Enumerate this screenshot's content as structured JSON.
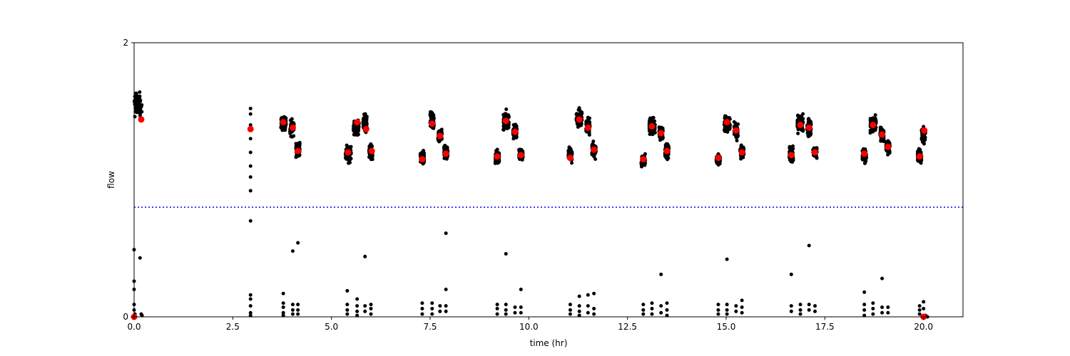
{
  "chart_data": {
    "type": "scatter",
    "xlabel": "time (hr)",
    "ylabel": "flow",
    "xlim": [
      0,
      21
    ],
    "ylim": [
      0,
      2
    ],
    "x_ticks": [
      0.0,
      2.5,
      5.0,
      7.5,
      10.0,
      12.5,
      15.0,
      17.5,
      20.0
    ],
    "x_tick_labels": [
      "0.0",
      "2.5",
      "5.0",
      "7.5",
      "10.0",
      "12.5",
      "15.0",
      "17.5",
      "20.0"
    ],
    "y_ticks": [
      0,
      2
    ],
    "y_tick_labels": [
      "0",
      "2"
    ],
    "grid": false,
    "threshold_line": {
      "y": 0.8,
      "color": "#0000ff",
      "style": "dotted"
    },
    "series": [
      {
        "color": "#000000",
        "marker": "dot",
        "clusters": [
          {
            "x_start": 0.0,
            "x_end": 0.2,
            "center": 1.55,
            "spread": 0.12
          },
          {
            "x_start": 3.72,
            "x_end": 3.85,
            "center": 1.41,
            "spread": 0.07
          },
          {
            "x_start": 3.95,
            "x_end": 4.05,
            "center": 1.38,
            "spread": 0.08
          },
          {
            "x_start": 4.1,
            "x_end": 4.2,
            "center": 1.22,
            "spread": 0.08
          },
          {
            "x_start": 5.35,
            "x_end": 5.5,
            "center": 1.19,
            "spread": 0.08
          },
          {
            "x_start": 5.55,
            "x_end": 5.7,
            "center": 1.38,
            "spread": 0.07
          },
          {
            "x_start": 5.8,
            "x_end": 5.9,
            "center": 1.41,
            "spread": 0.09
          },
          {
            "x_start": 5.95,
            "x_end": 6.05,
            "center": 1.2,
            "spread": 0.07
          },
          {
            "x_start": 7.25,
            "x_end": 7.35,
            "center": 1.16,
            "spread": 0.07
          },
          {
            "x_start": 7.5,
            "x_end": 7.6,
            "center": 1.42,
            "spread": 0.1
          },
          {
            "x_start": 7.7,
            "x_end": 7.8,
            "center": 1.32,
            "spread": 0.07
          },
          {
            "x_start": 7.85,
            "x_end": 7.95,
            "center": 1.2,
            "spread": 0.07
          },
          {
            "x_start": 9.15,
            "x_end": 9.25,
            "center": 1.16,
            "spread": 0.07
          },
          {
            "x_start": 9.35,
            "x_end": 9.5,
            "center": 1.43,
            "spread": 0.1
          },
          {
            "x_start": 9.6,
            "x_end": 9.7,
            "center": 1.35,
            "spread": 0.07
          },
          {
            "x_start": 9.75,
            "x_end": 9.85,
            "center": 1.19,
            "spread": 0.07
          },
          {
            "x_start": 11.0,
            "x_end": 11.1,
            "center": 1.18,
            "spread": 0.08
          },
          {
            "x_start": 11.2,
            "x_end": 11.35,
            "center": 1.45,
            "spread": 0.1
          },
          {
            "x_start": 11.45,
            "x_end": 11.55,
            "center": 1.39,
            "spread": 0.08
          },
          {
            "x_start": 11.6,
            "x_end": 11.7,
            "center": 1.22,
            "spread": 0.08
          },
          {
            "x_start": 12.85,
            "x_end": 12.95,
            "center": 1.14,
            "spread": 0.06
          },
          {
            "x_start": 13.05,
            "x_end": 13.2,
            "center": 1.39,
            "spread": 0.08
          },
          {
            "x_start": 13.3,
            "x_end": 13.4,
            "center": 1.34,
            "spread": 0.07
          },
          {
            "x_start": 13.45,
            "x_end": 13.55,
            "center": 1.21,
            "spread": 0.07
          },
          {
            "x_start": 14.75,
            "x_end": 14.85,
            "center": 1.15,
            "spread": 0.06
          },
          {
            "x_start": 14.95,
            "x_end": 15.1,
            "center": 1.41,
            "spread": 0.08
          },
          {
            "x_start": 15.2,
            "x_end": 15.3,
            "center": 1.35,
            "spread": 0.09
          },
          {
            "x_start": 15.35,
            "x_end": 15.45,
            "center": 1.2,
            "spread": 0.06
          },
          {
            "x_start": 16.6,
            "x_end": 16.7,
            "center": 1.18,
            "spread": 0.08
          },
          {
            "x_start": 16.8,
            "x_end": 16.95,
            "center": 1.41,
            "spread": 0.09
          },
          {
            "x_start": 17.05,
            "x_end": 17.15,
            "center": 1.38,
            "spread": 0.09
          },
          {
            "x_start": 17.2,
            "x_end": 17.3,
            "center": 1.2,
            "spread": 0.06
          },
          {
            "x_start": 18.45,
            "x_end": 18.55,
            "center": 1.18,
            "spread": 0.07
          },
          {
            "x_start": 18.65,
            "x_end": 18.8,
            "center": 1.4,
            "spread": 0.09
          },
          {
            "x_start": 18.9,
            "x_end": 19.0,
            "center": 1.33,
            "spread": 0.08
          },
          {
            "x_start": 19.05,
            "x_end": 19.15,
            "center": 1.24,
            "spread": 0.07
          },
          {
            "x_start": 19.85,
            "x_end": 19.95,
            "center": 1.17,
            "spread": 0.07
          },
          {
            "x_start": 19.95,
            "x_end": 20.05,
            "center": 1.32,
            "spread": 0.08
          }
        ],
        "points": [
          [
            2.95,
            1.52
          ],
          [
            2.95,
            1.48
          ],
          [
            2.95,
            1.4
          ],
          [
            2.95,
            1.3
          ],
          [
            2.95,
            1.2
          ],
          [
            2.95,
            1.1
          ],
          [
            2.95,
            1.02
          ],
          [
            2.95,
            0.92
          ],
          [
            2.95,
            0.7
          ],
          [
            2.95,
            0.16
          ],
          [
            2.95,
            0.13
          ],
          [
            2.95,
            0.08
          ],
          [
            2.95,
            0.03
          ],
          [
            2.95,
            0.01
          ],
          [
            0.0,
            0.49
          ],
          [
            0.0,
            0.26
          ],
          [
            0.0,
            0.2
          ],
          [
            0.0,
            0.09
          ],
          [
            0.0,
            0.05
          ],
          [
            0.02,
            0.02
          ],
          [
            0.15,
            0.43
          ],
          [
            0.18,
            0.02
          ],
          [
            0.2,
            0.01
          ],
          [
            3.78,
            0.17
          ],
          [
            3.78,
            0.1
          ],
          [
            3.78,
            0.07
          ],
          [
            3.78,
            0.03
          ],
          [
            3.78,
            0.01
          ],
          [
            4.02,
            0.48
          ],
          [
            4.02,
            0.09
          ],
          [
            4.02,
            0.05
          ],
          [
            4.02,
            0.02
          ],
          [
            4.15,
            0.54
          ],
          [
            4.15,
            0.09
          ],
          [
            4.15,
            0.05
          ],
          [
            4.15,
            0.02
          ],
          [
            5.4,
            0.19
          ],
          [
            5.4,
            0.09
          ],
          [
            5.4,
            0.05
          ],
          [
            5.4,
            0.02
          ],
          [
            5.65,
            0.13
          ],
          [
            5.65,
            0.08
          ],
          [
            5.65,
            0.04
          ],
          [
            5.65,
            0.01
          ],
          [
            5.85,
            0.44
          ],
          [
            5.85,
            0.08
          ],
          [
            5.85,
            0.04
          ],
          [
            6.0,
            0.09
          ],
          [
            6.0,
            0.06
          ],
          [
            6.0,
            0.02
          ],
          [
            7.3,
            0.1
          ],
          [
            7.3,
            0.06
          ],
          [
            7.3,
            0.02
          ],
          [
            7.55,
            0.1
          ],
          [
            7.55,
            0.06
          ],
          [
            7.55,
            0.02
          ],
          [
            7.75,
            0.08
          ],
          [
            7.75,
            0.04
          ],
          [
            7.9,
            0.61
          ],
          [
            7.9,
            0.2
          ],
          [
            7.9,
            0.08
          ],
          [
            7.9,
            0.04
          ],
          [
            9.2,
            0.09
          ],
          [
            9.2,
            0.06
          ],
          [
            9.2,
            0.02
          ],
          [
            9.42,
            0.46
          ],
          [
            9.42,
            0.09
          ],
          [
            9.42,
            0.05
          ],
          [
            9.42,
            0.02
          ],
          [
            9.65,
            0.07
          ],
          [
            9.65,
            0.03
          ],
          [
            9.8,
            0.2
          ],
          [
            9.8,
            0.07
          ],
          [
            9.8,
            0.03
          ],
          [
            11.05,
            0.09
          ],
          [
            11.05,
            0.05
          ],
          [
            11.05,
            0.02
          ],
          [
            11.28,
            0.15
          ],
          [
            11.28,
            0.08
          ],
          [
            11.28,
            0.04
          ],
          [
            11.28,
            0.01
          ],
          [
            11.5,
            0.16
          ],
          [
            11.5,
            0.08
          ],
          [
            11.5,
            0.03
          ],
          [
            11.65,
            0.17
          ],
          [
            11.65,
            0.06
          ],
          [
            11.65,
            0.02
          ],
          [
            12.9,
            0.09
          ],
          [
            12.9,
            0.05
          ],
          [
            12.9,
            0.02
          ],
          [
            13.12,
            0.1
          ],
          [
            13.12,
            0.06
          ],
          [
            13.12,
            0.02
          ],
          [
            13.35,
            0.31
          ],
          [
            13.35,
            0.08
          ],
          [
            13.35,
            0.03
          ],
          [
            13.5,
            0.1
          ],
          [
            13.5,
            0.05
          ],
          [
            13.5,
            0.01
          ],
          [
            14.8,
            0.09
          ],
          [
            14.8,
            0.05
          ],
          [
            14.8,
            0.02
          ],
          [
            15.02,
            0.42
          ],
          [
            15.02,
            0.09
          ],
          [
            15.02,
            0.05
          ],
          [
            15.02,
            0.02
          ],
          [
            15.25,
            0.08
          ],
          [
            15.25,
            0.04
          ],
          [
            15.4,
            0.12
          ],
          [
            15.4,
            0.07
          ],
          [
            15.4,
            0.03
          ],
          [
            16.65,
            0.31
          ],
          [
            16.65,
            0.08
          ],
          [
            16.65,
            0.04
          ],
          [
            16.88,
            0.09
          ],
          [
            16.88,
            0.05
          ],
          [
            16.88,
            0.02
          ],
          [
            17.1,
            0.52
          ],
          [
            17.1,
            0.09
          ],
          [
            17.1,
            0.05
          ],
          [
            17.25,
            0.08
          ],
          [
            17.25,
            0.04
          ],
          [
            18.5,
            0.18
          ],
          [
            18.5,
            0.09
          ],
          [
            18.5,
            0.05
          ],
          [
            18.5,
            0.01
          ],
          [
            18.72,
            0.1
          ],
          [
            18.72,
            0.06
          ],
          [
            18.72,
            0.02
          ],
          [
            18.95,
            0.28
          ],
          [
            18.95,
            0.07
          ],
          [
            18.95,
            0.03
          ],
          [
            19.1,
            0.07
          ],
          [
            19.1,
            0.03
          ],
          [
            19.9,
            0.08
          ],
          [
            19.9,
            0.05
          ],
          [
            19.9,
            0.02
          ],
          [
            20.0,
            0.11
          ],
          [
            20.0,
            0.06
          ],
          [
            20.05,
            0.01
          ],
          [
            20.1,
            0.0
          ]
        ]
      },
      {
        "color": "#ff0000",
        "marker": "dot",
        "points": [
          [
            0.0,
            0.0
          ],
          [
            0.18,
            1.44
          ],
          [
            2.95,
            1.37
          ],
          [
            3.78,
            1.42
          ],
          [
            4.02,
            1.38
          ],
          [
            4.15,
            1.21
          ],
          [
            5.42,
            1.2
          ],
          [
            5.65,
            1.42
          ],
          [
            5.88,
            1.37
          ],
          [
            6.02,
            1.21
          ],
          [
            7.3,
            1.15
          ],
          [
            7.55,
            1.41
          ],
          [
            7.75,
            1.32
          ],
          [
            7.9,
            1.19
          ],
          [
            9.2,
            1.17
          ],
          [
            9.42,
            1.43
          ],
          [
            9.65,
            1.35
          ],
          [
            9.8,
            1.18
          ],
          [
            11.05,
            1.16
          ],
          [
            11.28,
            1.44
          ],
          [
            11.5,
            1.38
          ],
          [
            11.65,
            1.22
          ],
          [
            12.9,
            1.15
          ],
          [
            13.12,
            1.39
          ],
          [
            13.35,
            1.34
          ],
          [
            13.5,
            1.21
          ],
          [
            14.8,
            1.16
          ],
          [
            15.02,
            1.42
          ],
          [
            15.25,
            1.36
          ],
          [
            15.4,
            1.2
          ],
          [
            16.65,
            1.18
          ],
          [
            16.88,
            1.4
          ],
          [
            17.1,
            1.38
          ],
          [
            17.25,
            1.2
          ],
          [
            18.5,
            1.19
          ],
          [
            18.72,
            1.4
          ],
          [
            18.95,
            1.33
          ],
          [
            19.1,
            1.24
          ],
          [
            19.9,
            1.17
          ],
          [
            20.02,
            1.36
          ],
          [
            20.0,
            0.0
          ]
        ]
      }
    ]
  }
}
